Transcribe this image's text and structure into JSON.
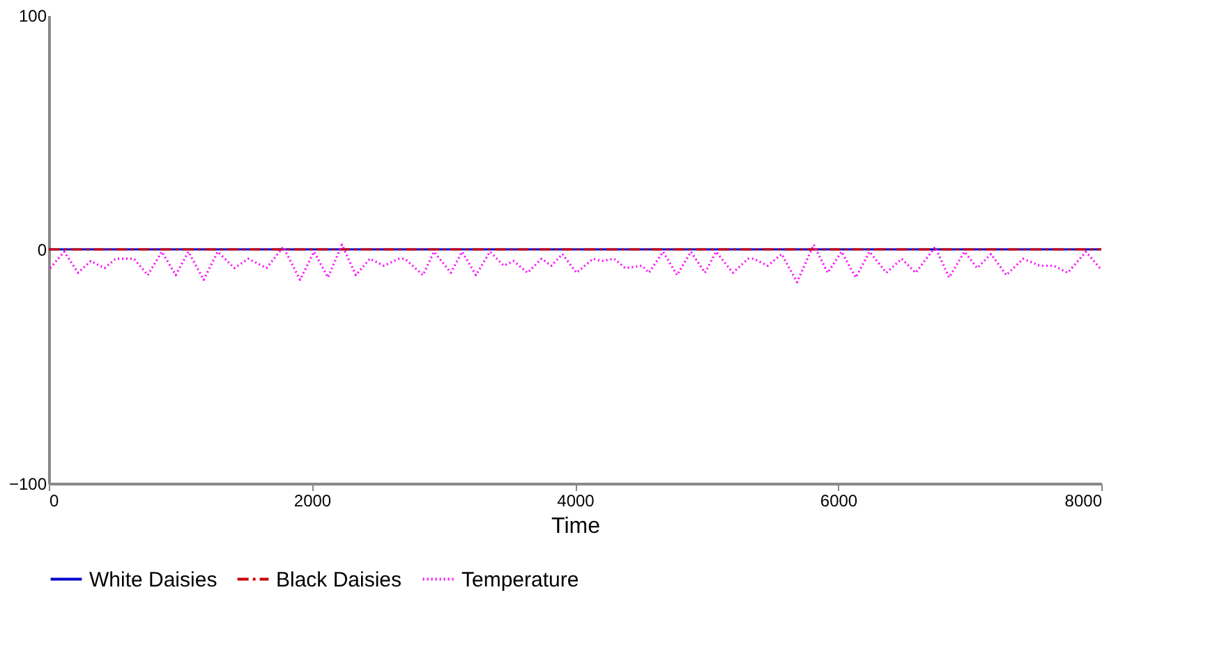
{
  "chart_data": {
    "type": "line",
    "xlabel": "Time",
    "xlim": [
      0,
      8000
    ],
    "xticks": [
      0,
      2000,
      4000,
      6000,
      8000
    ],
    "ylim": [
      -100,
      100
    ],
    "yticks": [
      -100,
      0,
      100
    ],
    "grid": false,
    "legend": "bottom",
    "marker": "none",
    "series": [
      {
        "name": "White Daisies",
        "color": "#0000cc",
        "line_style": "solid",
        "x": [
          0,
          8000
        ],
        "values": [
          0,
          0
        ]
      },
      {
        "name": "Black Daisies",
        "color": "#cc0000",
        "line_style": "dashdot",
        "x": [
          0,
          8000
        ],
        "values": [
          0,
          0
        ]
      },
      {
        "name": "Temperature",
        "color": "#ff00ff",
        "line_style": "dotted",
        "x": [
          11,
          117,
          223,
          318,
          424,
          509,
          647,
          753,
          859,
          965,
          1061,
          1177,
          1284,
          1411,
          1517,
          1655,
          1782,
          1910,
          2016,
          2122,
          2228,
          2334,
          2440,
          2546,
          2663,
          2706,
          2844,
          2928,
          3056,
          3141,
          3247,
          3353,
          3459,
          3533,
          3639,
          3745,
          3820,
          3904,
          4011,
          4138,
          4202,
          4297,
          4382,
          4509,
          4562,
          4669,
          4775,
          4881,
          4987,
          5072,
          5199,
          5316,
          5358,
          5464,
          5570,
          5687,
          5814,
          5920,
          6026,
          6133,
          6239,
          6366,
          6483,
          6589,
          6737,
          6843,
          6960,
          7056,
          7162,
          7278,
          7406,
          7533,
          7639,
          7745,
          7883,
          7989
        ],
        "values": [
          -8,
          -1,
          -10,
          -5,
          -8,
          -4,
          -4,
          -11,
          -1,
          -11,
          -1,
          -13,
          -1,
          -8,
          -4,
          -8,
          1,
          -13,
          -1,
          -12,
          2,
          -11,
          -4,
          -7,
          -4,
          -4,
          -11,
          -1,
          -10,
          -1,
          -11,
          -1,
          -7,
          -5,
          -10,
          -4,
          -7,
          -2,
          -10,
          -4,
          -5,
          -4,
          -8,
          -7,
          -10,
          -1,
          -11,
          -1,
          -10,
          -1,
          -10,
          -4,
          -4,
          -7,
          -2,
          -14,
          2,
          -10,
          -1,
          -12,
          -1,
          -10,
          -4,
          -10,
          1,
          -12,
          -1,
          -8,
          -2,
          -11,
          -4,
          -7,
          -7,
          -10,
          -1,
          -8
        ]
      }
    ]
  }
}
